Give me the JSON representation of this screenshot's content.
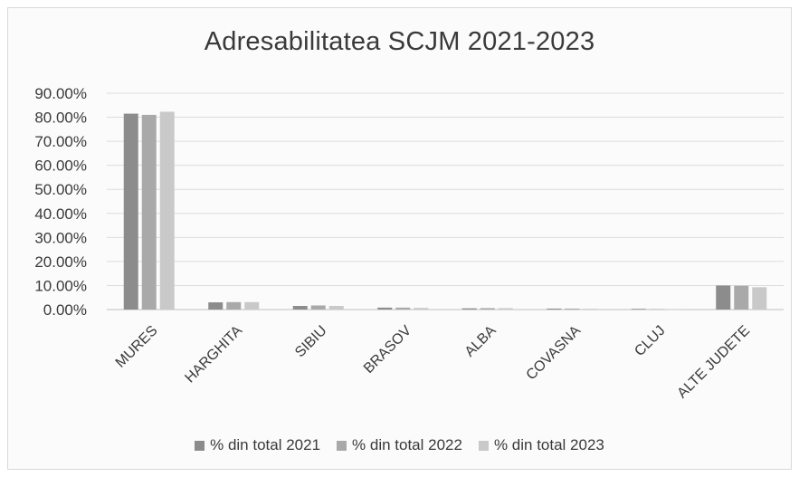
{
  "chart_data": {
    "type": "bar",
    "title": "Adresabilitatea SCJM 2021-2023",
    "categories": [
      "MURES",
      "HARGHITA",
      "SIBIU",
      "BRASOV",
      "ALBA",
      "COVASNA",
      "CLUJ",
      "ALTE JUDETE"
    ],
    "series": [
      {
        "name": "% din total 2021",
        "color": "#8c8c8c",
        "values": [
          81.5,
          3.0,
          1.5,
          0.8,
          0.5,
          0.4,
          0.3,
          10.0
        ]
      },
      {
        "name": "% din total 2022",
        "color": "#a9a9a9",
        "values": [
          81.0,
          3.1,
          1.7,
          0.8,
          0.6,
          0.4,
          0.2,
          9.9
        ]
      },
      {
        "name": "% din total 2023",
        "color": "#c9c9c9",
        "values": [
          82.3,
          3.1,
          1.5,
          0.7,
          0.6,
          0.3,
          0.1,
          9.3
        ]
      }
    ],
    "yticks": [
      "0.00%",
      "10.00%",
      "20.00%",
      "30.00%",
      "40.00%",
      "50.00%",
      "60.00%",
      "70.00%",
      "80.00%",
      "90.00%"
    ],
    "ylim": [
      0,
      90
    ],
    "grid": true,
    "legend_position": "bottom"
  }
}
